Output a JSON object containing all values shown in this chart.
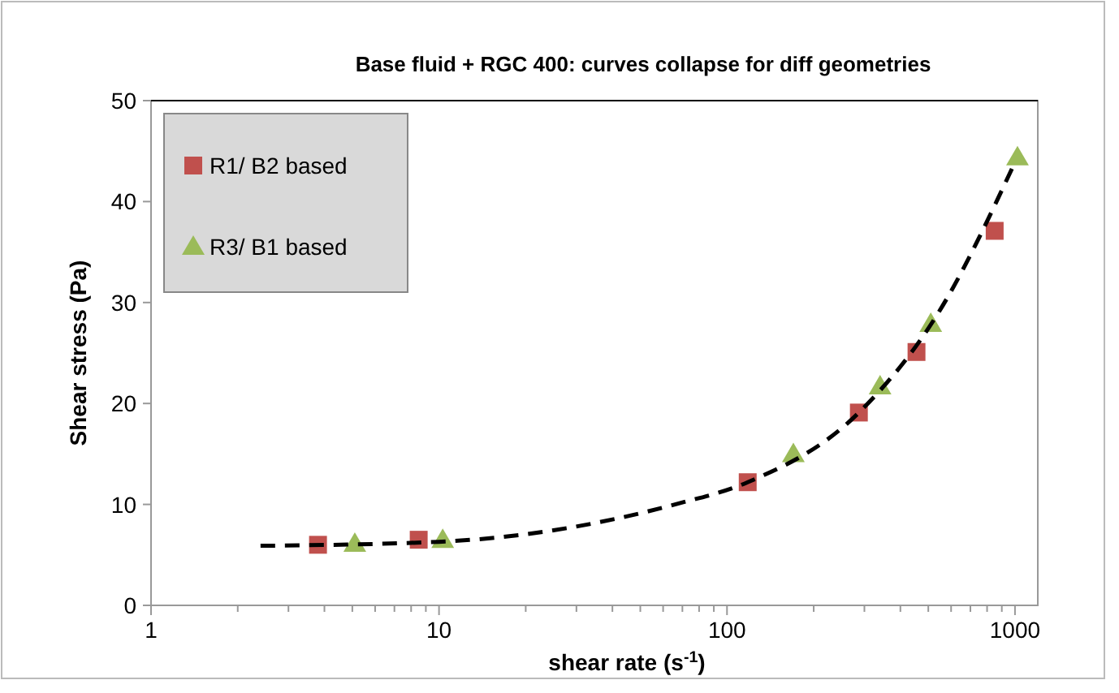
{
  "chart_data": {
    "type": "scatter",
    "title": "Base fluid + RGC 400: curves collapse for diff geometries",
    "xlabel": "shear rate  (s$^{-1}$)",
    "ylabel": "Shear stress (Pa)",
    "log": "x",
    "xlim": [
      1,
      1200
    ],
    "ylim": [
      0,
      50
    ],
    "xticks": [
      1,
      {
        "value": 2,
        "label": null
      },
      {
        "value": 3,
        "label": null
      },
      {
        "value": 4,
        "label": null
      },
      {
        "value": 5,
        "label": null
      },
      {
        "value": 6,
        "label": null
      },
      {
        "value": 7,
        "label": null
      },
      {
        "value": 8,
        "label": null
      },
      {
        "value": 9,
        "label": null
      },
      10,
      {
        "value": 20,
        "label": null
      },
      {
        "value": 30,
        "label": null
      },
      {
        "value": 40,
        "label": null
      },
      {
        "value": 50,
        "label": null
      },
      {
        "value": 60,
        "label": null
      },
      {
        "value": 70,
        "label": null
      },
      {
        "value": 80,
        "label": null
      },
      {
        "value": 90,
        "label": null
      },
      100,
      {
        "value": 200,
        "label": null
      },
      {
        "value": 300,
        "label": null
      },
      {
        "value": 400,
        "label": null
      },
      {
        "value": 500,
        "label": null
      },
      {
        "value": 600,
        "label": null
      },
      {
        "value": 700,
        "label": null
      },
      {
        "value": 800,
        "label": null
      },
      {
        "value": 900,
        "label": null
      },
      1000
    ],
    "yticks": [
      0,
      10,
      20,
      30,
      40,
      50
    ],
    "grid": false,
    "legend": "top left",
    "series": [
      {
        "name": "R1/ B2 based",
        "color": "#c0504d",
        "marker": "square",
        "x": [
          3.8,
          8.5,
          118,
          287,
          455,
          850
        ],
        "values": [
          6.0,
          6.5,
          12.2,
          19.1,
          25.1,
          37.1
        ]
      },
      {
        "name": "R3/ B1 based",
        "color": "#9bbb59",
        "marker": "triangle",
        "x": [
          5.1,
          10.3,
          170,
          340,
          510,
          1020
        ],
        "values": [
          6.1,
          6.5,
          15.0,
          21.7,
          27.9,
          44.4
        ]
      },
      {
        "type": "line",
        "color": "#000000",
        "line_style": "dashed",
        "marker": "none",
        "x": [
          2.4,
          10,
          66,
          118,
          287,
          545,
          1000
        ],
        "values": [
          5.9,
          6.3,
          10.0,
          12.2,
          19.1,
          29.1,
          43.9
        ]
      }
    ]
  }
}
